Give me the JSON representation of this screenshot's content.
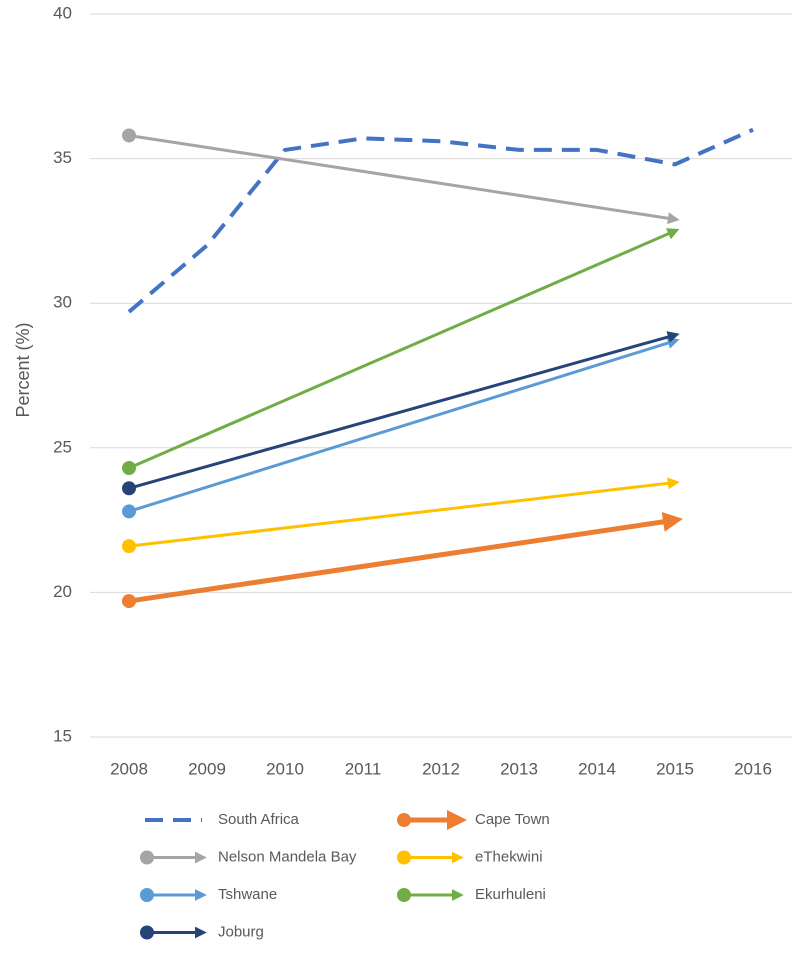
{
  "chart_data": {
    "type": "line",
    "y_label": "Percent (%)",
    "xlim": [
      2007.5,
      2016.5
    ],
    "xticks": [
      2008,
      2009,
      2010,
      2011,
      2012,
      2013,
      2014,
      2015,
      2016
    ],
    "ylim": [
      15,
      40
    ],
    "yticks": [
      15,
      20,
      25,
      30,
      35,
      40
    ],
    "grid": true,
    "legend": "bottom",
    "series": [
      {
        "name": "South Africa",
        "color": "#4472c4",
        "dashed": true,
        "start_marker": "none",
        "end_marker": "none",
        "line_width": 4,
        "x": [
          2008,
          2009,
          2010,
          2011,
          2012,
          2013,
          2014,
          2015,
          2016
        ],
        "values": [
          29.7,
          32.0,
          35.3,
          35.7,
          35.6,
          35.3,
          35.3,
          34.8,
          36.0
        ]
      },
      {
        "name": "Cape Town",
        "color": "#ed7d31",
        "dashed": false,
        "start_marker": "circle",
        "end_marker": "arrow",
        "line_width": 5,
        "x": [
          2008,
          2015
        ],
        "values": [
          19.7,
          22.5
        ]
      },
      {
        "name": "Nelson Mandela Bay",
        "color": "#a5a5a5",
        "dashed": false,
        "start_marker": "circle",
        "end_marker": "arrow",
        "line_width": 3,
        "x": [
          2008,
          2015
        ],
        "values": [
          35.8,
          32.9
        ]
      },
      {
        "name": "eThekwini",
        "color": "#ffc000",
        "dashed": false,
        "start_marker": "circle",
        "end_marker": "arrow",
        "line_width": 3,
        "x": [
          2008,
          2015
        ],
        "values": [
          21.6,
          23.8
        ]
      },
      {
        "name": "Tshwane",
        "color": "#5b9bd5",
        "dashed": false,
        "start_marker": "circle",
        "end_marker": "arrow",
        "line_width": 3,
        "x": [
          2008,
          2015
        ],
        "values": [
          22.8,
          28.7
        ]
      },
      {
        "name": "Ekurhuleni",
        "color": "#70ad47",
        "dashed": false,
        "start_marker": "circle",
        "end_marker": "arrow",
        "line_width": 3,
        "x": [
          2008,
          2015
        ],
        "values": [
          24.3,
          32.5
        ]
      },
      {
        "name": "Joburg",
        "color": "#264478",
        "dashed": false,
        "start_marker": "circle",
        "end_marker": "arrow",
        "line_width": 3,
        "x": [
          2008,
          2015
        ],
        "values": [
          23.6,
          28.9
        ]
      }
    ]
  }
}
